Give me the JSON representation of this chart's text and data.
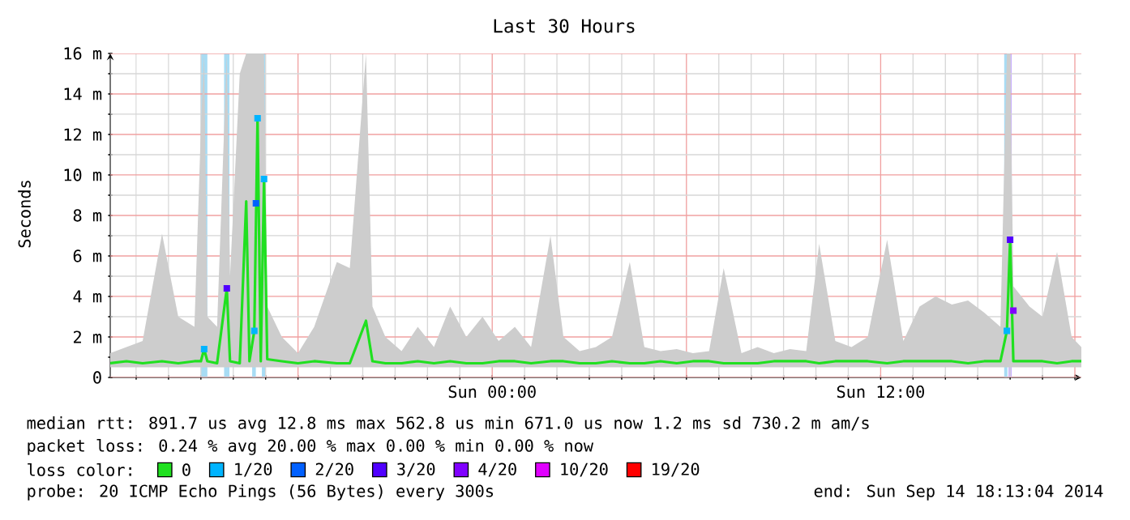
{
  "chart_data": {
    "type": "line",
    "title": "Last 30 Hours",
    "ylabel": "Seconds",
    "xlim": [
      "2014-09-13T12:12",
      "2014-09-14T18:12"
    ],
    "xticks": [
      {
        "value": "2014-09-13T13:00",
        "label": null
      },
      {
        "value": "2014-09-13T14:00",
        "label": null
      },
      {
        "value": "2014-09-13T15:00",
        "label": null
      },
      {
        "value": "2014-09-13T16:00",
        "label": null
      },
      {
        "value": "2014-09-13T17:00",
        "label": null
      },
      {
        "value": "2014-09-13T18:00",
        "label": null
      },
      {
        "value": "2014-09-13T19:00",
        "label": null
      },
      {
        "value": "2014-09-13T20:00",
        "label": null
      },
      {
        "value": "2014-09-13T21:00",
        "label": null
      },
      {
        "value": "2014-09-13T22:00",
        "label": null
      },
      {
        "value": "2014-09-13T23:00",
        "label": null
      },
      {
        "value": "2014-09-14T00:00",
        "label": "Sun 00:00"
      },
      {
        "value": "2014-09-14T01:00",
        "label": null
      },
      {
        "value": "2014-09-14T02:00",
        "label": null
      },
      {
        "value": "2014-09-14T03:00",
        "label": null
      },
      {
        "value": "2014-09-14T04:00",
        "label": null
      },
      {
        "value": "2014-09-14T05:00",
        "label": null
      },
      {
        "value": "2014-09-14T06:00",
        "label": null
      },
      {
        "value": "2014-09-14T07:00",
        "label": null
      },
      {
        "value": "2014-09-14T08:00",
        "label": null
      },
      {
        "value": "2014-09-14T09:00",
        "label": null
      },
      {
        "value": "2014-09-14T10:00",
        "label": null
      },
      {
        "value": "2014-09-14T11:00",
        "label": null
      },
      {
        "value": "2014-09-14T12:00",
        "label": "Sun 12:00"
      },
      {
        "value": "2014-09-14T13:00",
        "label": null
      },
      {
        "value": "2014-09-14T14:00",
        "label": null
      },
      {
        "value": "2014-09-14T15:00",
        "label": null
      },
      {
        "value": "2014-09-14T16:00",
        "label": null
      },
      {
        "value": "2014-09-14T17:00",
        "label": null
      },
      {
        "value": "2014-09-14T18:00",
        "label": null
      }
    ],
    "ylim": [
      0,
      16
    ],
    "yticks": [
      {
        "value": 0,
        "label": "0"
      },
      {
        "value": 1,
        "label": null
      },
      {
        "value": 2,
        "label": "2 m"
      },
      {
        "value": 3,
        "label": null
      },
      {
        "value": 4,
        "label": "4 m"
      },
      {
        "value": 5,
        "label": null
      },
      {
        "value": 6,
        "label": "6 m"
      },
      {
        "value": 7,
        "label": null
      },
      {
        "value": 8,
        "label": "8 m"
      },
      {
        "value": 9,
        "label": null
      },
      {
        "value": 10,
        "label": "10 m"
      },
      {
        "value": 11,
        "label": null
      },
      {
        "value": 12,
        "label": "12 m"
      },
      {
        "value": 13,
        "label": null
      },
      {
        "value": 14,
        "label": "14 m"
      },
      {
        "value": 15,
        "label": null
      },
      {
        "value": 16,
        "label": "16 m"
      }
    ],
    "grid": true,
    "legend": "bottom",
    "legend_title": "loss color:",
    "bands": [
      {
        "axis": "x",
        "from": "2014-09-13T15:00",
        "to": "2014-09-13T15:12",
        "color": "#a8dcf4"
      },
      {
        "axis": "x",
        "from": "2014-09-13T15:43",
        "to": "2014-09-13T15:53",
        "color": "#a8dcf4"
      },
      {
        "axis": "x",
        "from": "2014-09-13T16:35",
        "to": "2014-09-13T16:42",
        "color": "#a8dcf4"
      },
      {
        "axis": "x",
        "from": "2014-09-13T16:53",
        "to": "2014-09-13T17:00",
        "color": "#a8dcf4"
      },
      {
        "axis": "x",
        "from": "2014-09-14T15:49",
        "to": "2014-09-14T15:55",
        "color": "#a8dcf4"
      },
      {
        "axis": "x",
        "from": "2014-09-14T15:57",
        "to": "2014-09-14T16:03",
        "color": "#c8b0ff"
      }
    ],
    "series": [
      {
        "name": "0",
        "color": "#20e020",
        "x": [
          "2014-09-13T12:12",
          "2014-09-13T12:42",
          "2014-09-13T13:12",
          "2014-09-13T13:48",
          "2014-09-13T14:18",
          "2014-09-13T14:48",
          "2014-09-13T15:00",
          "2014-09-13T15:06",
          "2014-09-13T15:12",
          "2014-09-13T15:30",
          "2014-09-13T15:48",
          "2014-09-13T15:54",
          "2014-09-13T16:12",
          "2014-09-13T16:24",
          "2014-09-13T16:30",
          "2014-09-13T16:39",
          "2014-09-13T16:45",
          "2014-09-13T16:51",
          "2014-09-13T16:57",
          "2014-09-13T17:03",
          "2014-09-13T17:30",
          "2014-09-13T18:00",
          "2014-09-13T18:30",
          "2014-09-13T19:12",
          "2014-09-13T19:36",
          "2014-09-13T20:06",
          "2014-09-13T20:18",
          "2014-09-13T20:42",
          "2014-09-13T21:12",
          "2014-09-13T21:42",
          "2014-09-13T22:12",
          "2014-09-13T22:42",
          "2014-09-13T23:12",
          "2014-09-13T23:42",
          "2014-09-14T00:12",
          "2014-09-14T00:42",
          "2014-09-14T01:12",
          "2014-09-14T01:48",
          "2014-09-14T02:12",
          "2014-09-14T02:42",
          "2014-09-14T03:12",
          "2014-09-14T03:42",
          "2014-09-14T04:15",
          "2014-09-14T04:42",
          "2014-09-14T05:12",
          "2014-09-14T05:42",
          "2014-09-14T06:12",
          "2014-09-14T06:42",
          "2014-09-14T07:09",
          "2014-09-14T07:42",
          "2014-09-14T08:12",
          "2014-09-14T08:42",
          "2014-09-14T09:12",
          "2014-09-14T09:42",
          "2014-09-14T10:06",
          "2014-09-14T10:36",
          "2014-09-14T11:06",
          "2014-09-14T11:36",
          "2014-09-14T12:12",
          "2014-09-14T12:42",
          "2014-09-14T13:12",
          "2014-09-14T13:42",
          "2014-09-14T14:12",
          "2014-09-14T14:42",
          "2014-09-14T15:12",
          "2014-09-14T15:42",
          "2014-09-14T15:54",
          "2014-09-14T16:00",
          "2014-09-14T16:06",
          "2014-09-14T16:36",
          "2014-09-14T17:00",
          "2014-09-14T17:27",
          "2014-09-14T17:54",
          "2014-09-14T18:12"
        ],
        "values": [
          0.7,
          0.8,
          0.7,
          0.8,
          0.7,
          0.8,
          0.8,
          1.4,
          0.8,
          0.7,
          4.4,
          0.8,
          0.7,
          8.7,
          0.8,
          2.3,
          12.8,
          0.8,
          9.8,
          0.9,
          0.8,
          0.7,
          0.8,
          0.7,
          0.7,
          2.8,
          0.8,
          0.7,
          0.7,
          0.8,
          0.7,
          0.8,
          0.7,
          0.7,
          0.8,
          0.8,
          0.7,
          0.8,
          0.8,
          0.7,
          0.7,
          0.8,
          0.7,
          0.7,
          0.8,
          0.7,
          0.8,
          0.8,
          0.7,
          0.7,
          0.7,
          0.8,
          0.8,
          0.8,
          0.7,
          0.8,
          0.8,
          0.8,
          0.7,
          0.8,
          0.8,
          0.8,
          0.8,
          0.7,
          0.8,
          0.8,
          2.3,
          6.8,
          0.8,
          0.8,
          0.8,
          0.7,
          0.8,
          0.8
        ],
        "lower": [
          0.5,
          0.5,
          0.5,
          0.5,
          0.5,
          0.5,
          0.5,
          0.5,
          0.5,
          0.5,
          0.5,
          0.5,
          0.5,
          0.5,
          0.5,
          0.5,
          0.5,
          0.5,
          0.5,
          0.5,
          0.5,
          0.5,
          0.5,
          0.5,
          0.5,
          0.5,
          0.5,
          0.5,
          0.5,
          0.5,
          0.5,
          0.5,
          0.5,
          0.5,
          0.5,
          0.5,
          0.5,
          0.5,
          0.5,
          0.5,
          0.5,
          0.5,
          0.5,
          0.5,
          0.5,
          0.5,
          0.5,
          0.5,
          0.5,
          0.5,
          0.5,
          0.5,
          0.5,
          0.5,
          0.5,
          0.5,
          0.5,
          0.5,
          0.5,
          0.5,
          0.5,
          0.5,
          0.5,
          0.5,
          0.5,
          0.5,
          0.5,
          0.5,
          0.5,
          0.5,
          0.5,
          0.5,
          0.5,
          0.5
        ],
        "upper": [
          1.2,
          1.5,
          1.8,
          7.1,
          3,
          2.5,
          12.3,
          16,
          3,
          2.5,
          16,
          5,
          15,
          16,
          16,
          16,
          16,
          16,
          16,
          3.5,
          2,
          1.2,
          2.5,
          5.7,
          5.4,
          16,
          3.5,
          2,
          1.3,
          2.5,
          1.5,
          3.5,
          2,
          3,
          1.8,
          2.5,
          1.5,
          7,
          2,
          1.3,
          1.5,
          2,
          5.7,
          1.5,
          1.3,
          1.4,
          1.2,
          1.3,
          5.4,
          1.2,
          1.5,
          1.2,
          1.4,
          1.3,
          6.6,
          1.8,
          1.5,
          2,
          6.8,
          1.8,
          3.5,
          4,
          3.6,
          3.8,
          3.2,
          2.5,
          16,
          16,
          4.5,
          3.5,
          3,
          6.2,
          2,
          1.5
        ]
      },
      {
        "name": "1/20",
        "type": "scatter",
        "marker": "square",
        "color": "#00b4ff",
        "x": [
          "2014-09-13T15:06",
          "2014-09-13T16:39",
          "2014-09-13T16:45",
          "2014-09-13T16:57",
          "2014-09-14T15:54"
        ],
        "values": [
          1.4,
          2.3,
          12.8,
          9.8,
          2.3
        ]
      },
      {
        "name": "2/20",
        "type": "scatter",
        "marker": "square",
        "color": "#0060ff",
        "x": [
          "2014-09-13T16:42"
        ],
        "values": [
          8.6
        ]
      },
      {
        "name": "3/20",
        "type": "scatter",
        "marker": "square",
        "color": "#5000ff",
        "x": [
          "2014-09-13T15:48",
          "2014-09-14T16:00"
        ],
        "values": [
          4.4,
          6.8
        ]
      },
      {
        "name": "4/20",
        "type": "scatter",
        "marker": "square",
        "color": "#8000ff",
        "x": [
          "2014-09-14T16:06"
        ],
        "values": [
          3.3
        ]
      },
      {
        "name": "10/20",
        "type": "scatter",
        "color": "#e000ff"
      },
      {
        "name": "19/20",
        "type": "scatter",
        "color": "#ff0000"
      }
    ],
    "annotations": [
      "median rtt:  891.7 us avg  12.8 ms max  562.8 us min  671.0 us now  1.2 ms sd  730.2 m am/s",
      "packet loss: 0.24 % avg  20.00 % max  0.00 % min  0.00 % now",
      "probe:        20 ICMP Echo Pings (56 Bytes) every 300s",
      "end: Sun Sep 14 18:13:04 2014"
    ]
  }
}
